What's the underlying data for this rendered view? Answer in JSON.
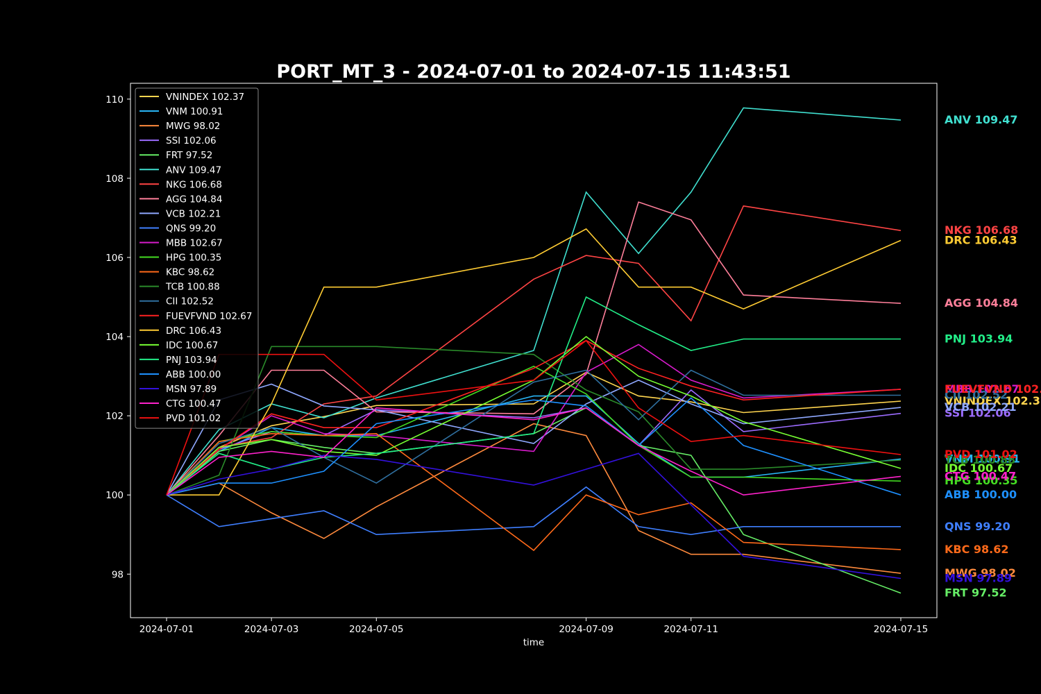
{
  "chart_data": {
    "type": "line",
    "title": "PORT_MT_3 - 2024-07-01 to 2024-07-15 11:43:51",
    "xlabel": "time",
    "ylabel": "",
    "x": [
      "2024-07-01",
      "2024-07-02",
      "2024-07-03",
      "2024-07-04",
      "2024-07-05",
      "2024-07-08",
      "2024-07-09",
      "2024-07-10",
      "2024-07-11",
      "2024-07-12",
      "2024-07-15"
    ],
    "x_ticks": [
      "2024-07-01",
      "2024-07-03",
      "2024-07-05",
      "2024-07-09",
      "2024-07-11",
      "2024-07-15"
    ],
    "ylim": [
      96.9,
      110.4
    ],
    "y_ticks": [
      98,
      100,
      102,
      104,
      106,
      108,
      110
    ],
    "grid": false,
    "legend_position": "upper-left",
    "background": "#000000",
    "series": [
      {
        "name": "VNINDEX",
        "label": "VNINDEX 102.37",
        "color": "#ffd54f",
        "values": [
          100,
          101.2,
          101.75,
          101.98,
          102.26,
          102.3,
          103.1,
          102.5,
          102.35,
          102.08,
          102.37
        ]
      },
      {
        "name": "VNM",
        "label": "VNM 100.91",
        "color": "#29b6f6",
        "values": [
          100,
          101.1,
          101.7,
          101.5,
          101.5,
          102.5,
          102.5,
          101.3,
          100.45,
          100.45,
          100.91
        ]
      },
      {
        "name": "MWG",
        "label": "MWG 98.02",
        "color": "#ff8a3d",
        "values": [
          100,
          100.3,
          99.55,
          98.9,
          99.7,
          101.8,
          101.5,
          99.1,
          98.5,
          98.5,
          98.02
        ]
      },
      {
        "name": "SSI",
        "label": "SSI 102.06",
        "color": "#9c6cff",
        "values": [
          100,
          101.15,
          101.6,
          101.5,
          102.15,
          101.95,
          102.2,
          101.25,
          102.65,
          101.6,
          102.06
        ]
      },
      {
        "name": "FRT",
        "label": "FRT 97.52",
        "color": "#66ee66",
        "values": [
          100,
          101.1,
          101.4,
          101.2,
          101.05,
          101.55,
          102.2,
          101.25,
          101.0,
          99.0,
          97.52
        ]
      },
      {
        "name": "ANV",
        "label": "ANV 109.47",
        "color": "#40e0d0",
        "values": [
          100,
          101.65,
          102.3,
          101.95,
          102.45,
          103.65,
          107.65,
          106.1,
          107.65,
          109.78,
          109.47
        ]
      },
      {
        "name": "NKG",
        "label": "NKG 106.68",
        "color": "#ff4444",
        "values": [
          100,
          101.2,
          101.45,
          102.3,
          102.5,
          105.45,
          106.05,
          105.85,
          104.4,
          107.3,
          106.68
        ]
      },
      {
        "name": "AGG",
        "label": "AGG 104.84",
        "color": "#ff7f9a",
        "values": [
          100,
          101.5,
          103.15,
          103.15,
          102.1,
          102.05,
          103.05,
          107.4,
          106.95,
          105.05,
          104.84
        ]
      },
      {
        "name": "VCB",
        "label": "VCB 102.21",
        "color": "#8fa8ff",
        "values": [
          100,
          102.4,
          102.8,
          102.25,
          102.15,
          101.3,
          102.3,
          102.9,
          102.3,
          101.8,
          102.21
        ]
      },
      {
        "name": "QNS",
        "label": "QNS 99.20",
        "color": "#3f7fff",
        "values": [
          100,
          99.2,
          99.4,
          99.6,
          99.0,
          99.2,
          100.2,
          99.2,
          99.0,
          99.2,
          99.2
        ]
      },
      {
        "name": "MBB",
        "label": "MBB 102.67",
        "color": "#d81bcc",
        "values": [
          100,
          101.15,
          102.0,
          101.55,
          101.5,
          101.1,
          103.1,
          103.8,
          102.9,
          102.45,
          102.67
        ]
      },
      {
        "name": "HPG",
        "label": "HPG 100.35",
        "color": "#44dd22",
        "values": [
          100,
          101.35,
          101.6,
          101.5,
          101.45,
          103.25,
          102.55,
          101.25,
          100.45,
          100.45,
          100.35
        ]
      },
      {
        "name": "KBC",
        "label": "KBC 98.62",
        "color": "#ff6a1a",
        "values": [
          100,
          101.35,
          101.55,
          101.5,
          101.55,
          98.6,
          100.0,
          99.5,
          99.8,
          98.8,
          98.62
        ]
      },
      {
        "name": "TCB",
        "label": "TCB 100.88",
        "color": "#2a8a2a",
        "values": [
          100,
          100.5,
          103.75,
          103.75,
          103.75,
          103.55,
          102.65,
          102.1,
          100.65,
          100.65,
          100.88
        ]
      },
      {
        "name": "CII",
        "label": "CII 102.52",
        "color": "#2f6f9f",
        "values": [
          100,
          101.3,
          101.7,
          100.95,
          100.3,
          102.85,
          103.15,
          101.9,
          103.15,
          102.52,
          102.52
        ]
      },
      {
        "name": "FUEVFVND",
        "label": "FUEVFVND 102.67",
        "color": "#ff2222",
        "values": [
          100,
          101.15,
          102.05,
          101.7,
          101.7,
          103.2,
          103.9,
          103.2,
          102.75,
          102.4,
          102.67
        ]
      },
      {
        "name": "DRC",
        "label": "DRC 106.43",
        "color": "#ffcc33",
        "values": [
          100,
          100.0,
          102.3,
          105.25,
          105.25,
          106.0,
          106.72,
          105.25,
          105.25,
          104.7,
          106.43
        ]
      },
      {
        "name": "IDC",
        "label": "IDC 100.67",
        "color": "#77ff33",
        "values": [
          100,
          101.2,
          101.4,
          101.1,
          101.0,
          102.9,
          104.0,
          103.0,
          102.5,
          101.85,
          100.67
        ]
      },
      {
        "name": "PNJ",
        "label": "PNJ 103.94",
        "color": "#22ee88",
        "values": [
          100,
          101.05,
          100.65,
          100.95,
          101.05,
          101.55,
          105.0,
          104.3,
          103.65,
          103.94,
          103.94
        ]
      },
      {
        "name": "ABB",
        "label": "ABB 100.00",
        "color": "#1e90ff",
        "values": [
          100,
          100.3,
          100.3,
          100.6,
          101.8,
          102.4,
          102.25,
          101.25,
          102.45,
          101.25,
          100.0
        ]
      },
      {
        "name": "MSN",
        "label": "MSN 97.89",
        "color": "#3311dd",
        "values": [
          100,
          100.4,
          100.65,
          101.0,
          100.9,
          100.25,
          100.65,
          101.05,
          99.75,
          98.45,
          97.89
        ]
      },
      {
        "name": "CTG",
        "label": "CTG 100.47",
        "color": "#ff22cc",
        "values": [
          100,
          100.95,
          101.1,
          100.95,
          102.2,
          101.9,
          102.2,
          101.25,
          100.6,
          100.0,
          100.47
        ]
      },
      {
        "name": "PVD",
        "label": "PVD 101.02",
        "color": "#ee1111",
        "values": [
          100,
          103.55,
          103.55,
          103.55,
          102.4,
          102.9,
          103.9,
          102.2,
          101.35,
          101.5,
          101.02
        ]
      }
    ]
  }
}
